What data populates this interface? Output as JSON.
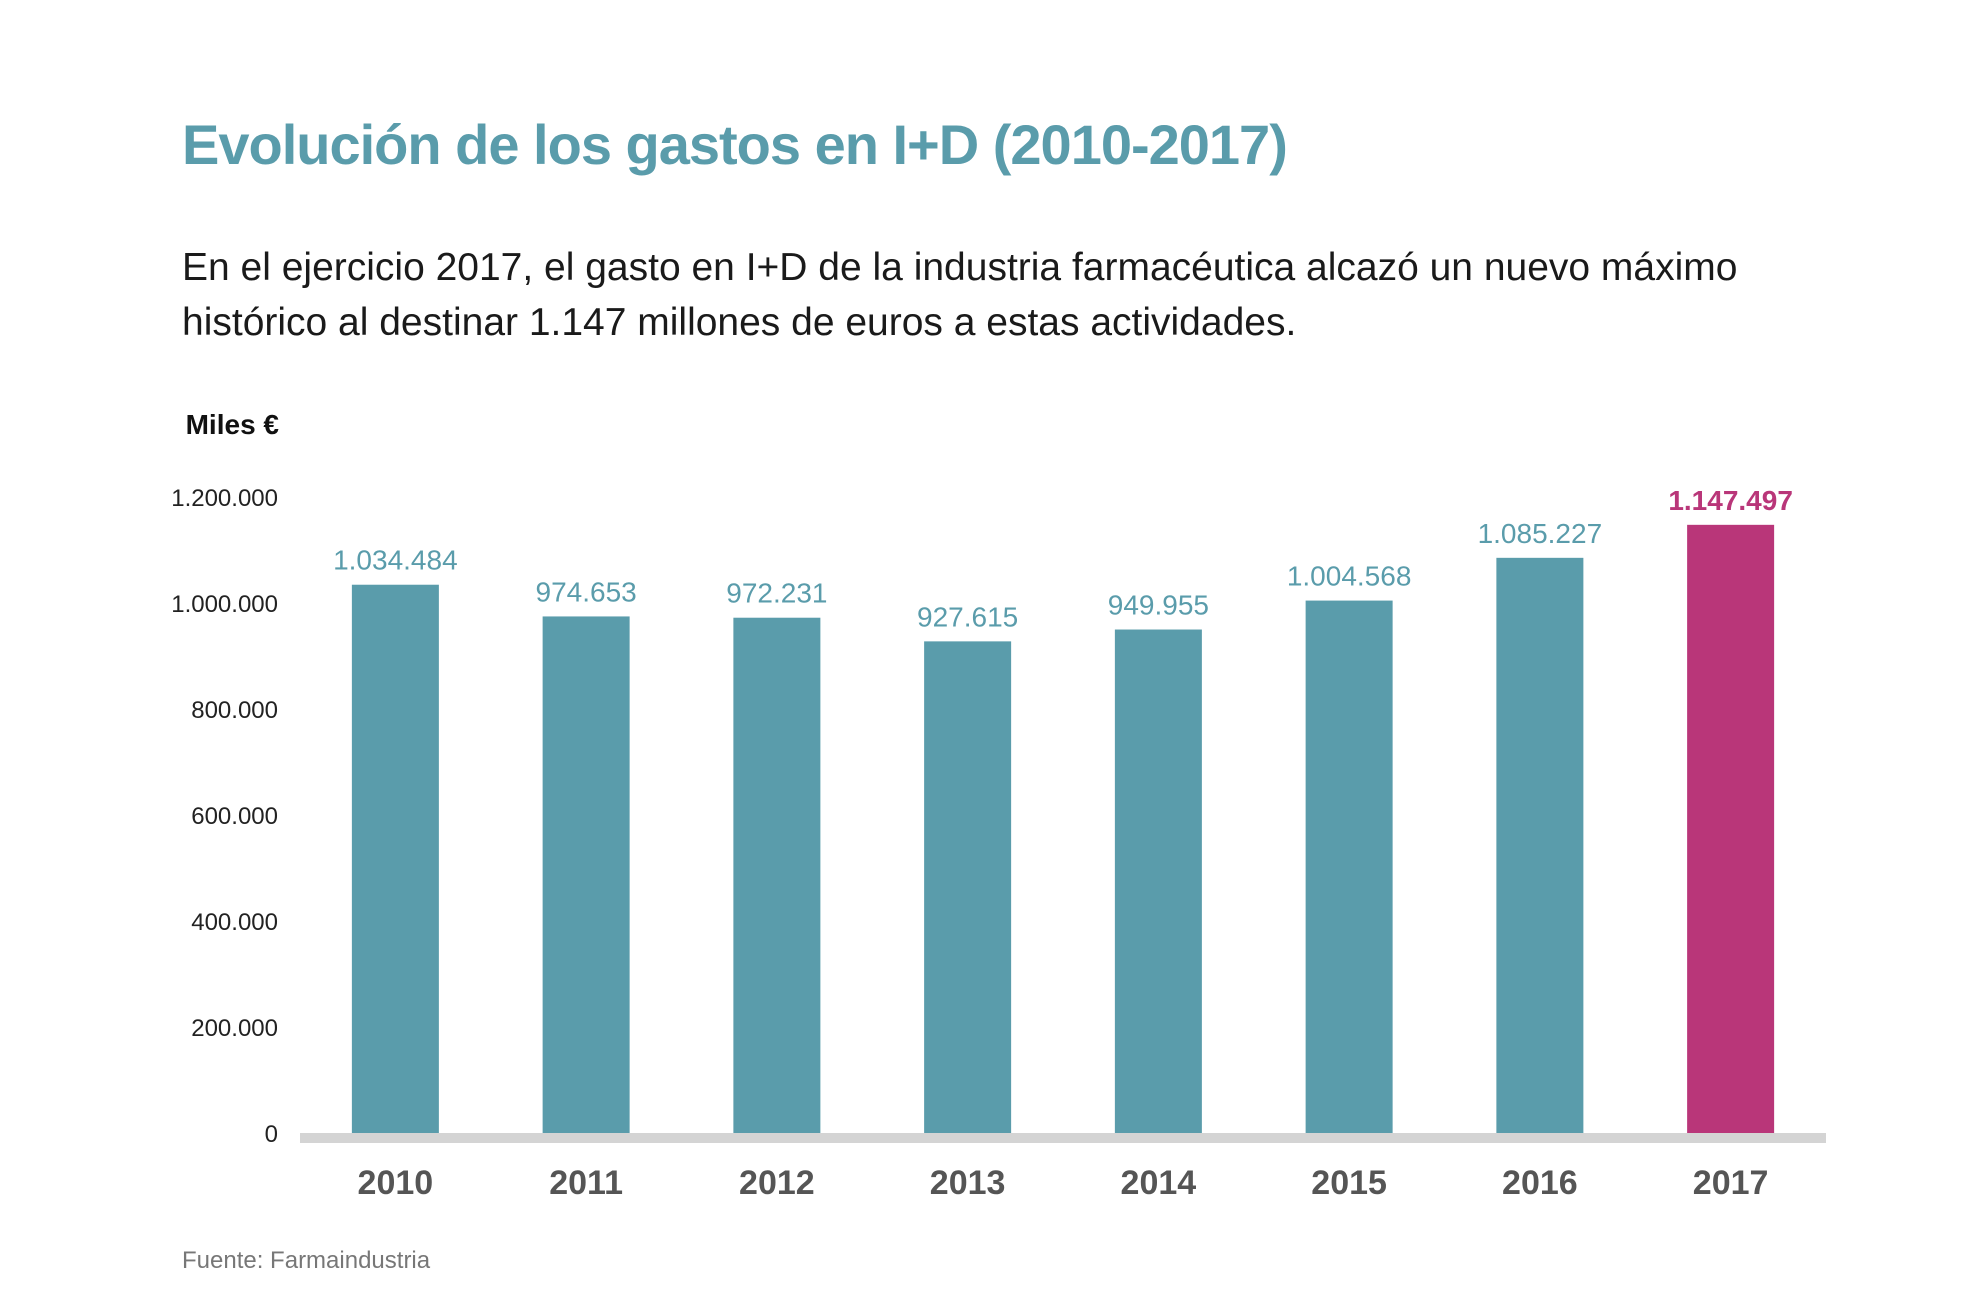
{
  "title": "Evolución de los gastos en I+D (2010-2017)",
  "subtitle": "En el ejercicio 2017, el gasto en I+D de la industria farmacéutica alcazó un nuevo máximo histórico al destinar 1.147 millones de euros a estas actividades.",
  "source": "Fuente: Farmaindustria",
  "colors": {
    "bar": "#5a9cab",
    "highlight": "#b93679",
    "axis": "#d4d4d4",
    "text": "#1a1a1a",
    "title": "#5a9cab"
  },
  "chart_data": {
    "type": "bar",
    "ylabel": "Miles €",
    "xlabel": "",
    "ylim": [
      0,
      1200000
    ],
    "y_ticks": [
      0,
      200000,
      400000,
      600000,
      800000,
      1000000,
      1200000
    ],
    "y_tick_labels": [
      "0",
      "200.000",
      "400.000",
      "600.000",
      "800.000",
      "1.000.000",
      "1.200.000"
    ],
    "grid": false,
    "categories": [
      "2010",
      "2011",
      "2012",
      "2013",
      "2014",
      "2015",
      "2016",
      "2017"
    ],
    "values": [
      1034484,
      974653,
      972231,
      927615,
      949955,
      1004568,
      1085227,
      1147497
    ],
    "value_labels": [
      "1.034.484",
      "974.653",
      "972.231",
      "927.615",
      "949.955",
      "1.004.568",
      "1.085.227",
      "1.147.497"
    ],
    "highlight_category": "2017"
  }
}
